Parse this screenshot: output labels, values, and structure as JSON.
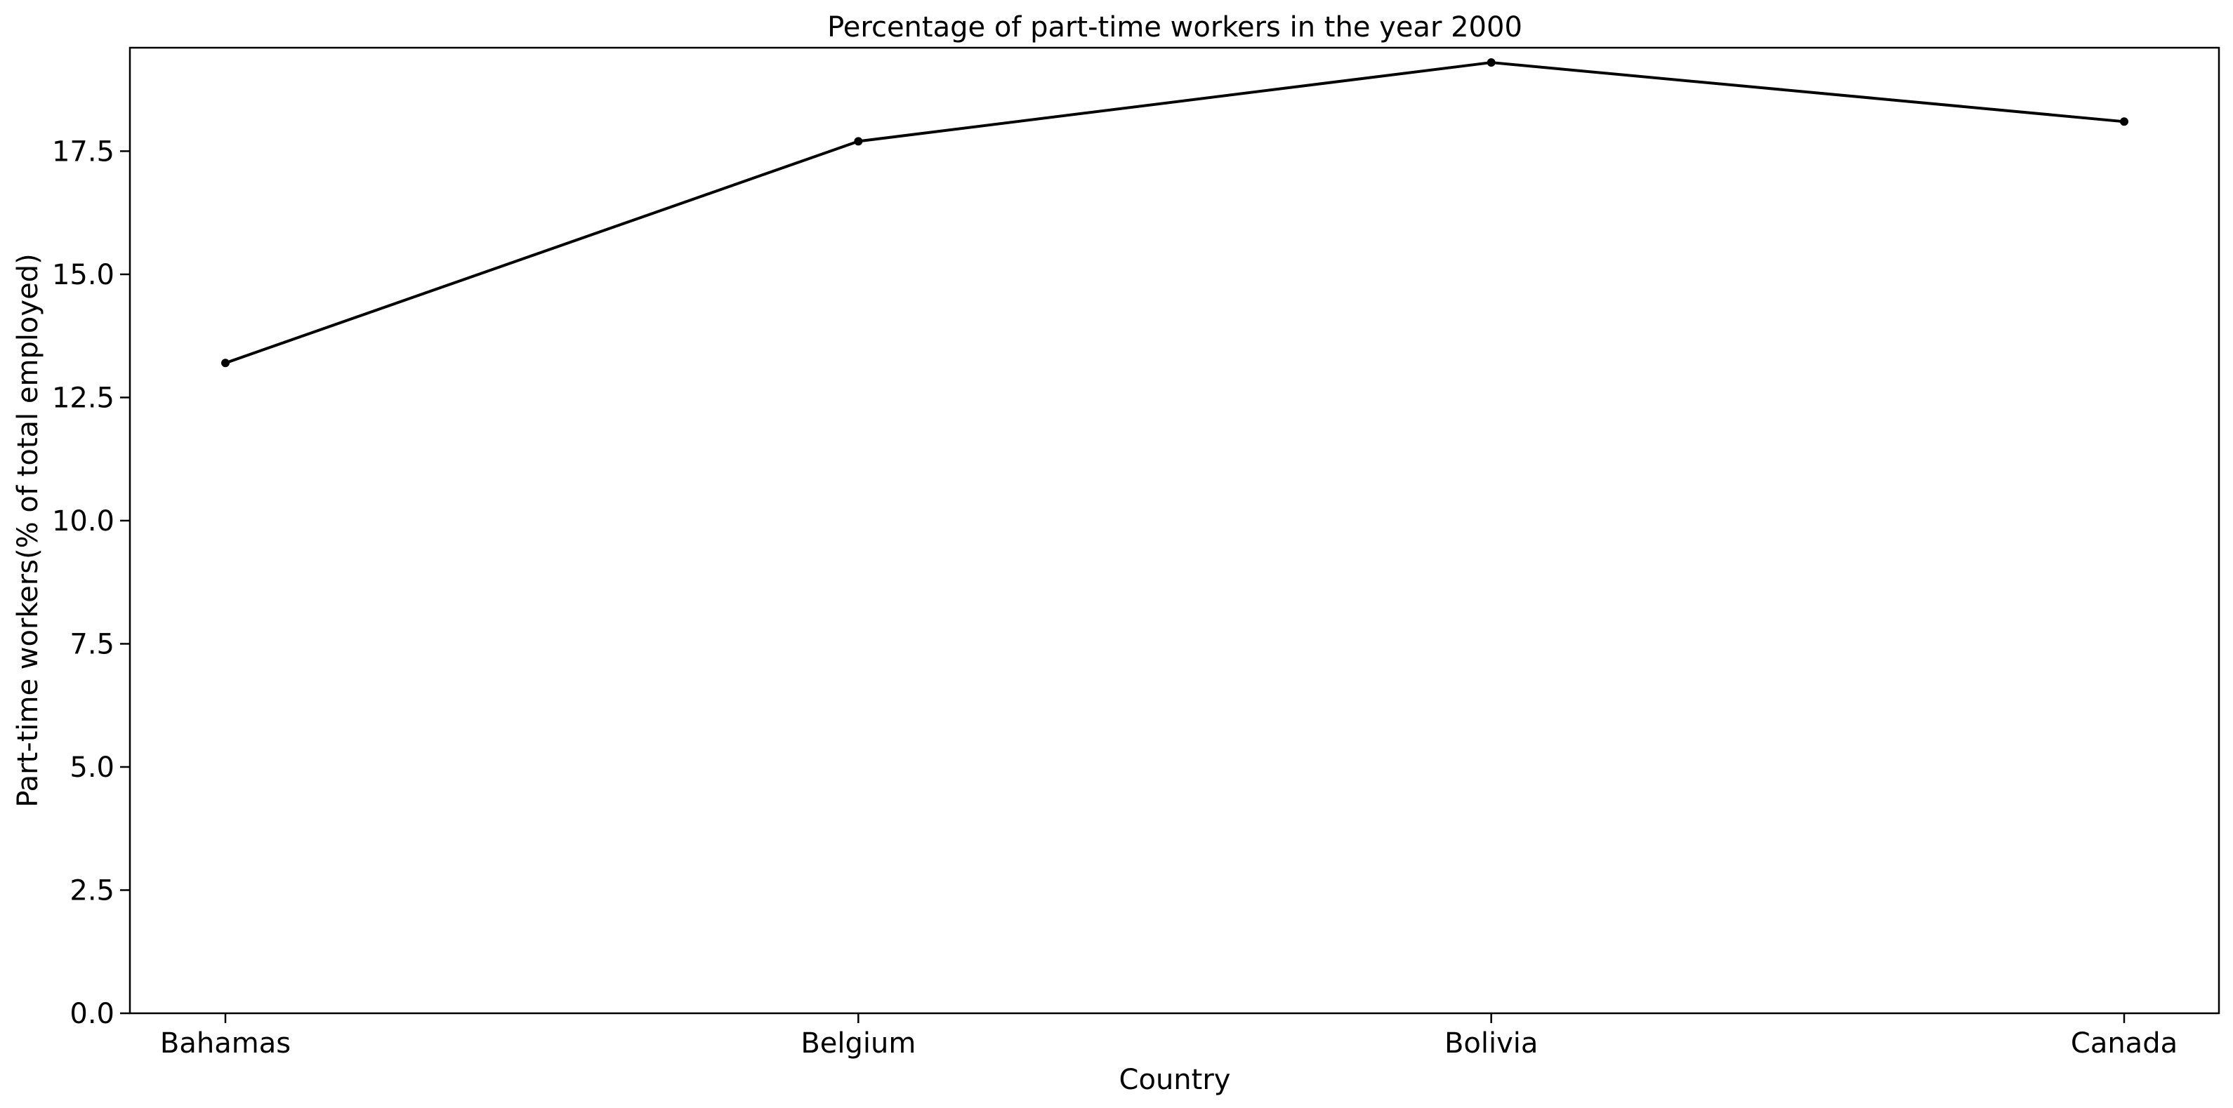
{
  "chart_data": {
    "type": "line",
    "title": "Percentage of part-time workers in the year 2000",
    "xlabel": "Country",
    "ylabel": "Part-time workers(% of total employed)",
    "categories": [
      "Bahamas",
      "Belgium",
      "Bolivia",
      "Canada"
    ],
    "series": [
      {
        "values": [
          13.2,
          17.7,
          19.3,
          18.1
        ],
        "color": "#000000"
      }
    ],
    "ylim": [
      0,
      19.6
    ],
    "yticks": [
      0.0,
      2.5,
      5.0,
      7.5,
      10.0,
      12.5,
      15.0,
      17.5
    ],
    "ytick_labels": [
      "0.0",
      "2.5",
      "5.0",
      "7.5",
      "10.0",
      "12.5",
      "15.0",
      "17.5"
    ],
    "grid": false,
    "legend": "none",
    "marker": "dot"
  }
}
